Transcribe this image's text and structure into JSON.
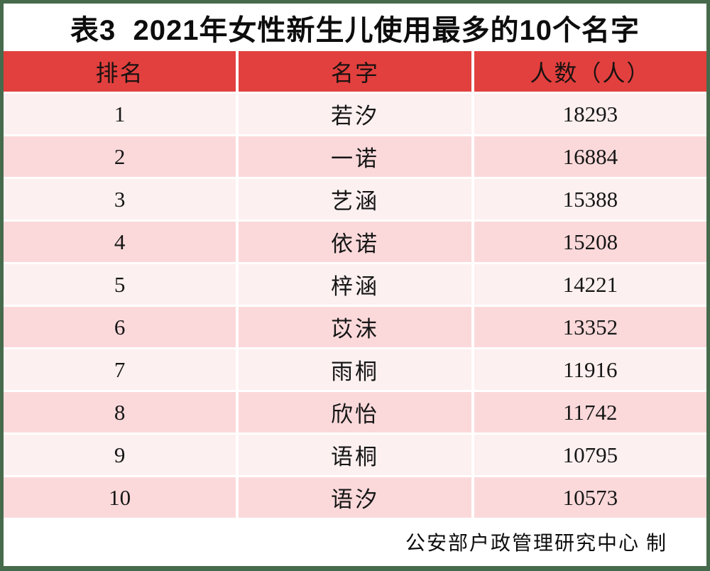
{
  "title": "表3  2021年女性新生儿使用最多的10个名字",
  "table": {
    "headers": [
      "排名",
      "名字",
      "人数（人）"
    ],
    "rows": [
      {
        "rank": "1",
        "name": "若汐",
        "count": "18293"
      },
      {
        "rank": "2",
        "name": "一诺",
        "count": "16884"
      },
      {
        "rank": "3",
        "name": "艺涵",
        "count": "15388"
      },
      {
        "rank": "4",
        "name": "依诺",
        "count": "15208"
      },
      {
        "rank": "5",
        "name": "梓涵",
        "count": "14221"
      },
      {
        "rank": "6",
        "name": "苡沫",
        "count": "13352"
      },
      {
        "rank": "7",
        "name": "雨桐",
        "count": "11916"
      },
      {
        "rank": "8",
        "name": "欣怡",
        "count": "11742"
      },
      {
        "rank": "9",
        "name": "语桐",
        "count": "10795"
      },
      {
        "rank": "10",
        "name": "语汐",
        "count": "10573"
      }
    ]
  },
  "footer": {
    "credit": "公安部户政管理研究中心 制"
  },
  "colors": {
    "frame_green": "#466b4c",
    "header_red": "#e2403e",
    "row_pink_light": "#fdf0f0",
    "row_pink_dark": "#fbd9da",
    "text_black": "#0d0d0d",
    "grid_white": "#ffffff"
  },
  "chart_data": {
    "type": "table",
    "title": "表3 2021年女性新生儿使用最多的10个名字",
    "columns": [
      "排名",
      "名字",
      "人数（人）"
    ],
    "rows": [
      [
        1,
        "若汐",
        18293
      ],
      [
        2,
        "一诺",
        16884
      ],
      [
        3,
        "艺涵",
        15388
      ],
      [
        4,
        "依诺",
        15208
      ],
      [
        5,
        "梓涵",
        14221
      ],
      [
        6,
        "苡沫",
        13352
      ],
      [
        7,
        "雨桐",
        11916
      ],
      [
        8,
        "欣怡",
        11742
      ],
      [
        9,
        "语桐",
        10795
      ],
      [
        10,
        "语汐",
        10573
      ]
    ],
    "source_credit": "公安部户政管理研究中心 制"
  }
}
